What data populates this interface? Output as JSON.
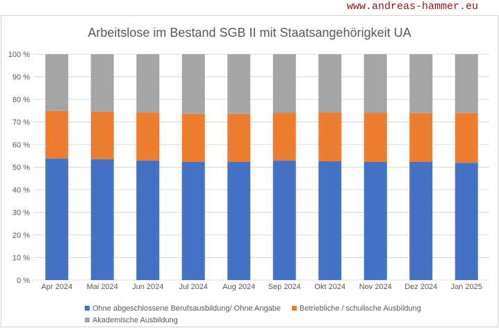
{
  "watermark": "www.andreas-hammer.eu",
  "chart_data": {
    "type": "bar",
    "stacked": true,
    "title": "Arbeitslose im Bestand SGB II mit Staatsangehörigkeit UA",
    "categories": [
      "Apr 2024",
      "Mai 2024",
      "Jun 2024",
      "Jul 2024",
      "Aug 2024",
      "Sep 2024",
      "Okt 2024",
      "Nov 2024",
      "Dez 2024",
      "Jan 2025"
    ],
    "yticks": [
      "0 %",
      "10 %",
      "20 %",
      "30 %",
      "40 %",
      "50 %",
      "60 %",
      "70 %",
      "80 %",
      "90 %",
      "100 %"
    ],
    "ylim": [
      0,
      100
    ],
    "grid": true,
    "legend_position": "bottom",
    "series": [
      {
        "name": "Ohne abgeschlossene Berufsausbildung/ Ohne Angabe",
        "color": "#4472c4",
        "values": [
          53.8,
          53.5,
          52.9,
          52.3,
          52.3,
          52.9,
          52.6,
          52.3,
          52.3,
          51.9
        ]
      },
      {
        "name": "Betriebliche / schulische Ausbildung",
        "color": "#ed7d31",
        "values": [
          21.0,
          21.0,
          21.3,
          21.3,
          21.3,
          21.1,
          21.6,
          21.7,
          21.6,
          22.0
        ]
      },
      {
        "name": "Akademische Ausbildung",
        "color": "#a5a5a5",
        "values": [
          25.2,
          25.5,
          25.8,
          26.4,
          26.4,
          26.0,
          25.8,
          26.0,
          26.1,
          26.1
        ]
      }
    ]
  }
}
